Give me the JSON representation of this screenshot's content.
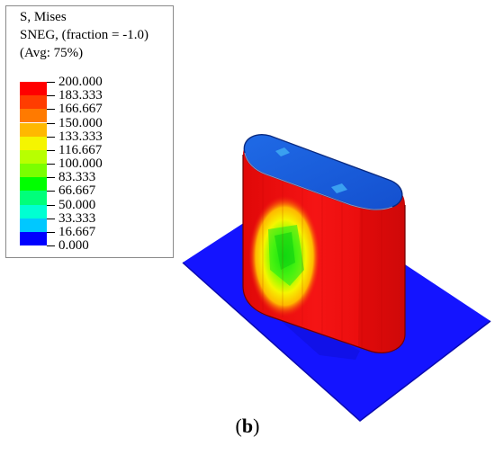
{
  "legend": {
    "title_line1": "S, Mises",
    "title_line2": "SNEG, (fraction = -1.0)",
    "title_line3": "(Avg: 75%)",
    "levels": [
      {
        "label": "200.000",
        "color": "#ff0000"
      },
      {
        "label": "183.333",
        "color": "#ff3d00"
      },
      {
        "label": "166.667",
        "color": "#ff7a00"
      },
      {
        "label": "150.000",
        "color": "#ffb800"
      },
      {
        "label": "133.333",
        "color": "#f5f500"
      },
      {
        "label": "116.667",
        "color": "#b8ff00"
      },
      {
        "label": "100.000",
        "color": "#7aff00"
      },
      {
        "label": "83.333",
        "color": "#00ff00"
      },
      {
        "label": "66.667",
        "color": "#00ff7a"
      },
      {
        "label": "50.000",
        "color": "#00ffd2"
      },
      {
        "label": "33.333",
        "color": "#00c8ff"
      },
      {
        "label": "16.667",
        "color": "#0064ff"
      },
      {
        "label": "0.000",
        "color": "#0000ff"
      }
    ]
  },
  "colors": {
    "plate": "#1414ff",
    "body_red": "#f01010",
    "top_blue": "#1a5adc"
  },
  "caption": {
    "open": "(",
    "letter": "b",
    "close": ")"
  }
}
